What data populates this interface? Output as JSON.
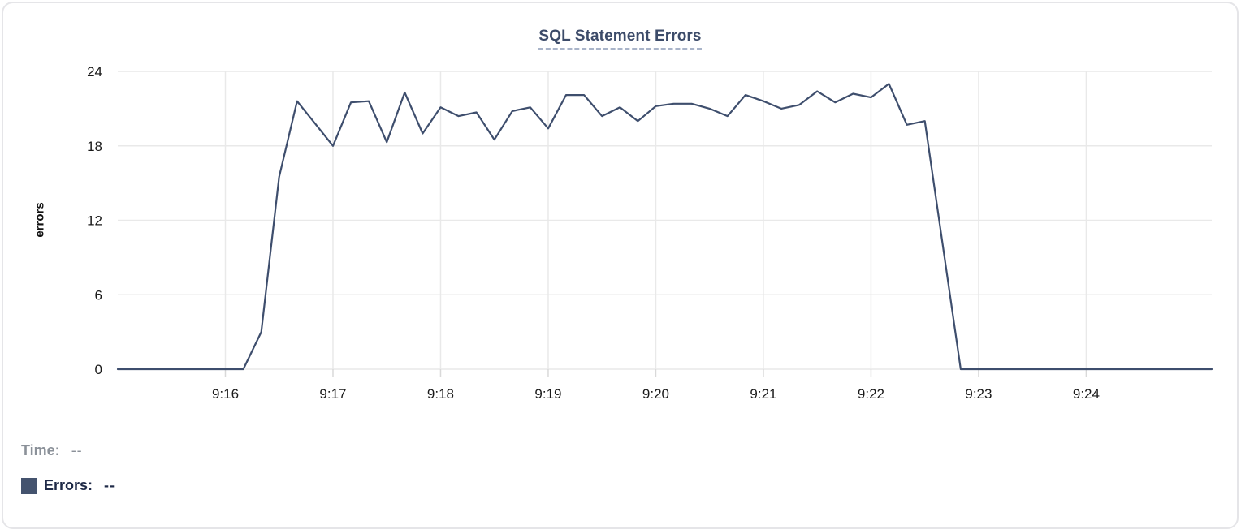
{
  "chart": {
    "title": "SQL Statement Errors",
    "ylabel": "errors"
  },
  "hover": {
    "time_label": "Time:",
    "time_value": "--",
    "errors_label": "Errors:",
    "errors_value": "--"
  },
  "colors": {
    "line": "#3e4e6d",
    "swatch": "#44536e",
    "title": "#3c4b69",
    "title_underline": "#a9b4c9",
    "grid": "#e9e9e9",
    "tick": "#d9d9d9",
    "axis_text": "#1a1a1a",
    "time_label": "#8b9199",
    "errors_label": "#1f2a47",
    "card_border": "#e5e5e8"
  },
  "chart_data": {
    "type": "line",
    "title": "SQL Statement Errors",
    "xlabel": "",
    "ylabel": "errors",
    "ylim": [
      0,
      24
    ],
    "y_ticks": [
      0,
      6,
      12,
      18,
      24
    ],
    "grid": true,
    "legend_position": "none",
    "interval_seconds": 10,
    "x_ticks": [
      {
        "label": "9:16",
        "t": 60
      },
      {
        "label": "9:17",
        "t": 120
      },
      {
        "label": "9:18",
        "t": 180
      },
      {
        "label": "9:19",
        "t": 240
      },
      {
        "label": "9:20",
        "t": 300
      },
      {
        "label": "9:21",
        "t": 360
      },
      {
        "label": "9:22",
        "t": 420
      },
      {
        "label": "9:23",
        "t": 480
      },
      {
        "label": "9:24",
        "t": 540
      }
    ],
    "values": [
      0,
      0,
      0,
      0,
      0,
      0,
      0,
      0,
      3,
      15.5,
      21.6,
      19.8,
      18,
      21.5,
      21.6,
      18.3,
      22.3,
      19,
      21.1,
      20.4,
      20.7,
      18.5,
      20.8,
      21.1,
      19.4,
      22.1,
      22.1,
      20.4,
      21.1,
      20,
      21.2,
      21.4,
      21.4,
      21,
      20.4,
      22.1,
      21.6,
      21,
      21.3,
      22.4,
      21.5,
      22.2,
      21.9,
      23,
      19.7,
      20,
      10,
      0,
      0,
      0,
      0,
      0,
      0,
      0,
      0,
      0,
      0,
      0,
      0,
      0,
      0,
      0
    ]
  }
}
